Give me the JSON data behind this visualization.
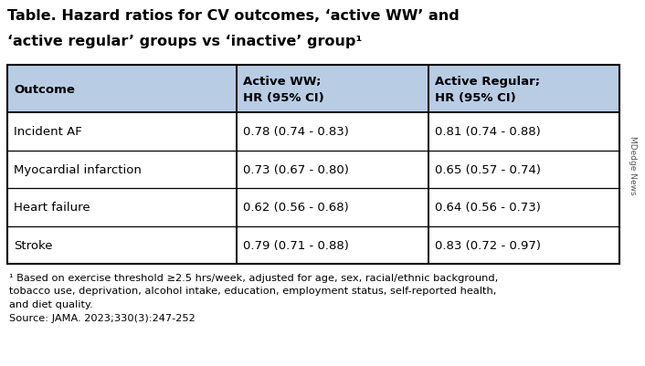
{
  "title_line1": "Table. Hazard ratios for CV outcomes, ‘active WW’ and",
  "title_line2": "‘active regular’ groups vs ‘inactive’ group¹",
  "header_col0": "Outcome",
  "header_col1_line1": "Active WW;",
  "header_col1_line2": "HR (95% CI)",
  "header_col2_line1": "Active Regular;",
  "header_col2_line2": "HR (95% CI)",
  "rows": [
    [
      "Incident AF",
      "0.78 (0.74 - 0.83)",
      "0.81 (0.74 - 0.88)"
    ],
    [
      "Myocardial infarction",
      "0.73 (0.67 - 0.80)",
      "0.65 (0.57 - 0.74)"
    ],
    [
      "Heart failure",
      "0.62 (0.56 - 0.68)",
      "0.64 (0.56 - 0.73)"
    ],
    [
      "Stroke",
      "0.79 (0.71 - 0.88)",
      "0.83 (0.72 - 0.97)"
    ]
  ],
  "footnotes": [
    "¹ Based on exercise threshold ≥2.5 hrs/week, adjusted for age, sex, racial/ethnic background,",
    "tobacco use, deprivation, alcohol intake, education, employment status, self-reported health,",
    "and diet quality.",
    "Source: JAMA. 2023;330(3):247-252"
  ],
  "watermark": "MDedge News",
  "header_bg": "#b8cce4",
  "white": "#ffffff",
  "black": "#000000",
  "title_fontsize": 11.5,
  "header_fontsize": 9.5,
  "cell_fontsize": 9.5,
  "footnote_fontsize": 8.2,
  "watermark_fontsize": 6.5,
  "fig_width": 7.06,
  "fig_height": 4.02,
  "dpi": 100
}
